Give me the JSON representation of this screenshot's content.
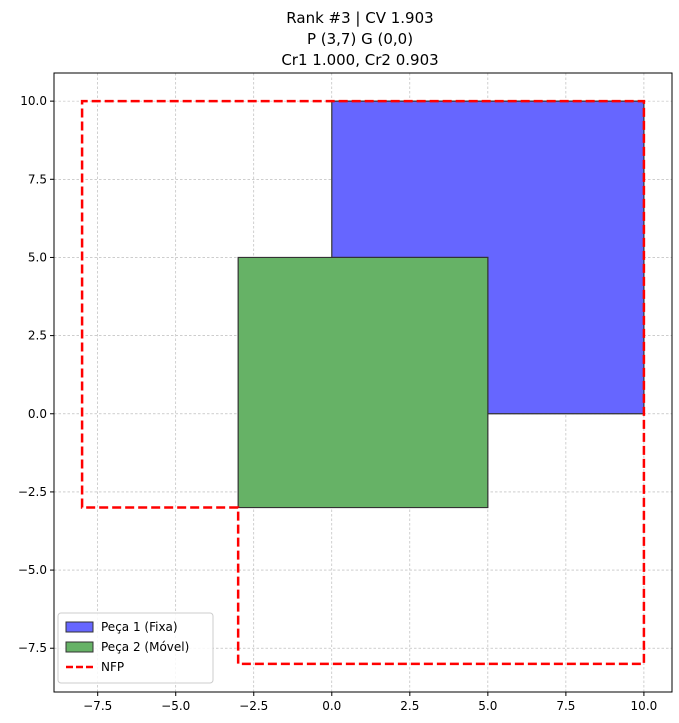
{
  "chart_data": {
    "type": "polygon-plot",
    "title_lines": [
      "Rank #3 | CV 1.903",
      "P (3,7) G (0,0)",
      "Cr1 1.000, Cr2 0.903"
    ],
    "xlim": [
      -8.9,
      10.9
    ],
    "ylim": [
      -8.9,
      10.9
    ],
    "x_ticks": [
      -7.5,
      -5.0,
      -2.5,
      0.0,
      2.5,
      5.0,
      7.5,
      10.0
    ],
    "x_tick_labels": [
      "−7.5",
      "−5.0",
      "−2.5",
      "0.0",
      "2.5",
      "5.0",
      "7.5",
      "10.0"
    ],
    "y_ticks": [
      10.0,
      7.5,
      5.0,
      2.5,
      0.0,
      -2.5,
      -5.0,
      -7.5
    ],
    "y_tick_labels": [
      "10.0",
      "7.5",
      "5.0",
      "2.5",
      "0.0",
      "−2.5",
      "−5.0",
      "−7.5"
    ],
    "grid": true,
    "legend_position": "lower-left",
    "series": [
      {
        "name": "Peça 1 (Fixa)",
        "kind": "polygon",
        "fill": "#6666ff",
        "edge": "#333333",
        "points": [
          [
            0,
            0
          ],
          [
            10,
            0
          ],
          [
            10,
            10
          ],
          [
            0,
            10
          ],
          [
            0,
            5
          ],
          [
            5,
            5
          ],
          [
            5,
            0
          ]
        ]
      },
      {
        "name": "Peça 2 (Móvel)",
        "kind": "polygon",
        "fill": "#66b266",
        "edge": "#333333",
        "points": [
          [
            -3,
            -3
          ],
          [
            5,
            -3
          ],
          [
            5,
            5
          ],
          [
            -3,
            5
          ]
        ]
      },
      {
        "name": "NFP",
        "kind": "dashed-outline",
        "color": "#ff0000",
        "points": [
          [
            -8,
            -3
          ],
          [
            -8,
            10
          ],
          [
            10,
            10
          ],
          [
            10,
            -8
          ],
          [
            -3,
            -8
          ],
          [
            -3,
            -3
          ]
        ]
      }
    ]
  }
}
